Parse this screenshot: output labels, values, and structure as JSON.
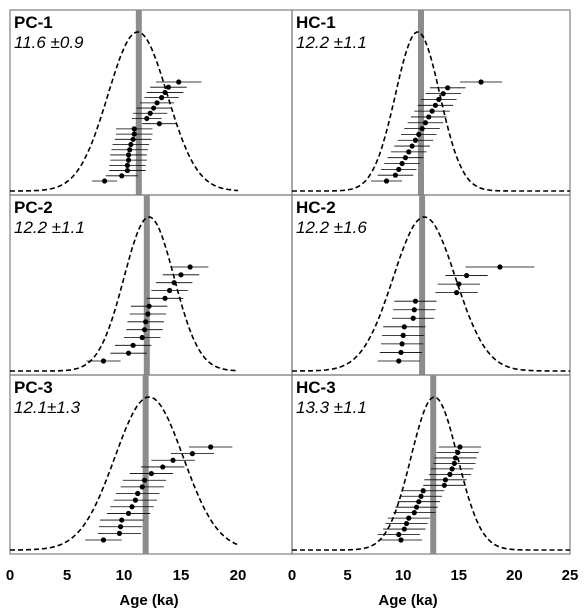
{
  "chart_data": [
    {
      "type": "scatter",
      "panel": "PC-1",
      "stat": "11.6 ±0.9",
      "mean": 11.3,
      "curve": {
        "mean": 11.2,
        "sd": 2.6
      },
      "points": [
        {
          "age": 14.8,
          "err": 2.0
        },
        {
          "age": 13.9,
          "err": 1.6
        },
        {
          "age": 13.6,
          "err": 1.6
        },
        {
          "age": 13.3,
          "err": 1.5
        },
        {
          "age": 12.9,
          "err": 1.5
        },
        {
          "age": 12.6,
          "err": 1.5
        },
        {
          "age": 12.3,
          "err": 1.5
        },
        {
          "age": 12.0,
          "err": 1.3
        },
        {
          "age": 13.1,
          "err": 1.5
        },
        {
          "age": 10.9,
          "err": 1.6
        },
        {
          "age": 10.9,
          "err": 1.6
        },
        {
          "age": 10.8,
          "err": 1.6
        },
        {
          "age": 10.6,
          "err": 1.6
        },
        {
          "age": 10.5,
          "err": 1.6
        },
        {
          "age": 10.4,
          "err": 1.6
        },
        {
          "age": 10.4,
          "err": 1.6
        },
        {
          "age": 10.3,
          "err": 1.6
        },
        {
          "age": 10.3,
          "err": 1.6
        },
        {
          "age": 9.8,
          "err": 1.4
        },
        {
          "age": 8.3,
          "err": 1.1
        }
      ]
    },
    {
      "type": "scatter",
      "panel": "HC-1",
      "stat": "12.2 ±1.1",
      "mean": 11.6,
      "curve": {
        "mean": 11.3,
        "sd": 2.0
      },
      "points": [
        {
          "age": 17.0,
          "err": 1.9
        },
        {
          "age": 14.0,
          "err": 1.6
        },
        {
          "age": 13.6,
          "err": 1.6
        },
        {
          "age": 13.2,
          "err": 1.6
        },
        {
          "age": 12.9,
          "err": 1.6
        },
        {
          "age": 12.6,
          "err": 1.6
        },
        {
          "age": 12.3,
          "err": 1.6
        },
        {
          "age": 12.0,
          "err": 1.6
        },
        {
          "age": 11.7,
          "err": 1.6
        },
        {
          "age": 11.4,
          "err": 1.6
        },
        {
          "age": 11.1,
          "err": 1.6
        },
        {
          "age": 10.8,
          "err": 1.6
        },
        {
          "age": 10.5,
          "err": 1.6
        },
        {
          "age": 10.2,
          "err": 1.6
        },
        {
          "age": 9.9,
          "err": 1.6
        },
        {
          "age": 9.6,
          "err": 1.6
        },
        {
          "age": 9.3,
          "err": 1.6
        },
        {
          "age": 8.5,
          "err": 1.4
        }
      ]
    },
    {
      "type": "scatter",
      "panel": "PC-2",
      "stat": "12.2 ±1.1",
      "mean": 12.0,
      "curve": {
        "mean": 12.2,
        "sd": 2.2
      },
      "points": [
        {
          "age": 15.8,
          "err": 1.6
        },
        {
          "age": 15.0,
          "err": 1.6
        },
        {
          "age": 14.4,
          "err": 1.6
        },
        {
          "age": 14.0,
          "err": 1.6
        },
        {
          "age": 13.6,
          "err": 1.6
        },
        {
          "age": 12.2,
          "err": 1.6
        },
        {
          "age": 12.1,
          "err": 1.6
        },
        {
          "age": 11.9,
          "err": 1.6
        },
        {
          "age": 11.8,
          "err": 1.6
        },
        {
          "age": 11.6,
          "err": 1.6
        },
        {
          "age": 10.8,
          "err": 1.6
        },
        {
          "age": 10.4,
          "err": 1.6
        },
        {
          "age": 8.2,
          "err": 1.5
        }
      ]
    },
    {
      "type": "scatter",
      "panel": "HC-2",
      "stat": "12.2 ±1.6",
      "mean": 11.7,
      "curve": {
        "mean": 11.9,
        "sd": 2.8
      },
      "points": [
        {
          "age": 18.7,
          "err": 3.1
        },
        {
          "age": 15.7,
          "err": 1.9
        },
        {
          "age": 15.0,
          "err": 1.9
        },
        {
          "age": 14.8,
          "err": 1.9
        },
        {
          "age": 11.1,
          "err": 1.9
        },
        {
          "age": 11.0,
          "err": 1.9
        },
        {
          "age": 10.9,
          "err": 1.9
        },
        {
          "age": 10.1,
          "err": 1.9
        },
        {
          "age": 10.0,
          "err": 1.9
        },
        {
          "age": 9.9,
          "err": 1.9
        },
        {
          "age": 9.8,
          "err": 1.9
        },
        {
          "age": 9.6,
          "err": 1.9
        }
      ]
    },
    {
      "type": "scatter",
      "panel": "PC-3",
      "stat": "12.1±1.3",
      "mean": 11.9,
      "curve": {
        "mean": 12.2,
        "sd": 3.0
      },
      "points": [
        {
          "age": 17.6,
          "err": 1.9
        },
        {
          "age": 16.0,
          "err": 1.9
        },
        {
          "age": 14.3,
          "err": 1.9
        },
        {
          "age": 13.4,
          "err": 1.9
        },
        {
          "age": 12.4,
          "err": 1.9
        },
        {
          "age": 11.8,
          "err": 1.9
        },
        {
          "age": 11.6,
          "err": 1.9
        },
        {
          "age": 11.2,
          "err": 1.9
        },
        {
          "age": 11.0,
          "err": 1.9
        },
        {
          "age": 10.7,
          "err": 1.9
        },
        {
          "age": 10.4,
          "err": 1.9
        },
        {
          "age": 9.8,
          "err": 1.9
        },
        {
          "age": 9.7,
          "err": 1.9
        },
        {
          "age": 9.6,
          "err": 1.9
        },
        {
          "age": 8.2,
          "err": 1.6
        }
      ]
    },
    {
      "type": "scatter",
      "panel": "HC-3",
      "stat": "13.3 ±1.1",
      "mean": 12.7,
      "curve": {
        "mean": 12.8,
        "sd": 2.1
      },
      "points": [
        {
          "age": 15.1,
          "err": 1.9
        },
        {
          "age": 14.9,
          "err": 1.9
        },
        {
          "age": 14.7,
          "err": 1.9
        },
        {
          "age": 14.6,
          "err": 1.9
        },
        {
          "age": 14.4,
          "err": 1.9
        },
        {
          "age": 14.2,
          "err": 1.9
        },
        {
          "age": 13.8,
          "err": 1.9
        },
        {
          "age": 13.7,
          "err": 1.9
        },
        {
          "age": 11.8,
          "err": 1.9
        },
        {
          "age": 11.6,
          "err": 1.9
        },
        {
          "age": 11.4,
          "err": 1.9
        },
        {
          "age": 11.2,
          "err": 1.9
        },
        {
          "age": 11.0,
          "err": 1.9
        },
        {
          "age": 10.5,
          "err": 1.9
        },
        {
          "age": 10.3,
          "err": 1.9
        },
        {
          "age": 10.1,
          "err": 1.9
        },
        {
          "age": 9.6,
          "err": 1.9
        },
        {
          "age": 9.8,
          "err": 1.9
        }
      ]
    }
  ],
  "axis": {
    "xlabel": "Age (ka)",
    "left_ticks": [
      "0",
      "5",
      "10",
      "15",
      "20"
    ],
    "right_ticks": [
      "0",
      "5",
      "10",
      "15",
      "20",
      "25"
    ],
    "xlim": [
      0,
      25
    ]
  },
  "colors": {
    "mean_line": "#8c8c8c",
    "curve": "#000000",
    "frame": "#808080"
  }
}
